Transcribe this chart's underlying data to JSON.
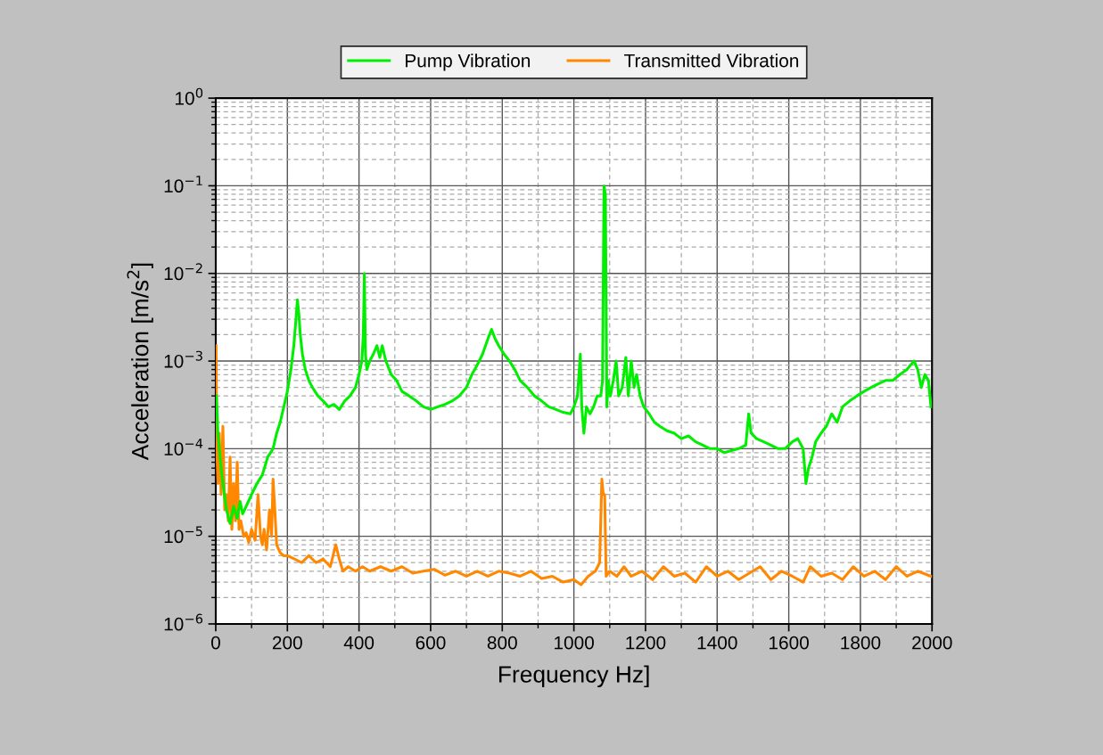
{
  "chart_data": {
    "type": "line",
    "xlabel": "Frequency Hz]",
    "ylabel": "Acceleration [m/s$^{2}$]",
    "log": "y",
    "grid": true,
    "legend": "top",
    "line_style": "solid",
    "marker": "none",
    "xlim": [
      0,
      2000
    ],
    "xticks": [
      0,
      200,
      400,
      600,
      800,
      1000,
      1200,
      1400,
      1600,
      1800,
      2000
    ],
    "ylim": [
      1e-06,
      1
    ],
    "yticks": [
      {
        "value": 1e-06,
        "label": "10$^{−6}$"
      },
      {
        "value": 1e-05,
        "label": "10$^{−5}$"
      },
      {
        "value": 0.0001,
        "label": "10$^{−4}$"
      },
      {
        "value": 0.001,
        "label": "10$^{−3}$"
      },
      {
        "value": 0.01,
        "label": "10$^{−2}$"
      },
      {
        "value": 0.1,
        "label": "10$^{−1}$"
      },
      {
        "value": 1,
        "label": "10$^{0}$"
      }
    ],
    "series": [
      {
        "name": "Pump Vibration",
        "color": "#00ee00",
        "x": [
          2,
          6,
          10,
          15,
          20,
          30,
          40,
          50,
          60,
          68,
          75,
          85,
          100,
          115,
          130,
          145,
          160,
          170,
          180,
          190,
          200,
          210,
          218,
          224,
          228,
          232,
          236,
          242,
          250,
          260,
          270,
          285,
          300,
          315,
          330,
          345,
          360,
          375,
          390,
          400,
          408,
          412,
          415,
          418,
          422,
          430,
          440,
          450,
          458,
          465,
          475,
          490,
          505,
          520,
          540,
          560,
          580,
          600,
          620,
          640,
          660,
          680,
          700,
          715,
          730,
          745,
          760,
          770,
          780,
          790,
          805,
          820,
          835,
          850,
          870,
          890,
          910,
          930,
          950,
          970,
          990,
          1000,
          1010,
          1018,
          1022,
          1028,
          1035,
          1045,
          1055,
          1065,
          1075,
          1080,
          1084,
          1088,
          1092,
          1096,
          1102,
          1110,
          1118,
          1125,
          1135,
          1145,
          1152,
          1160,
          1168,
          1175,
          1185,
          1195,
          1210,
          1225,
          1240,
          1260,
          1280,
          1300,
          1320,
          1340,
          1360,
          1380,
          1400,
          1420,
          1440,
          1460,
          1480,
          1488,
          1495,
          1510,
          1530,
          1550,
          1570,
          1590,
          1610,
          1625,
          1640,
          1648,
          1655,
          1665,
          1675,
          1690,
          1705,
          1720,
          1735,
          1750,
          1770,
          1790,
          1810,
          1830,
          1850,
          1870,
          1890,
          1910,
          1930,
          1940,
          1950,
          1960,
          1970,
          1980,
          1990,
          1997
        ],
        "values": [
          0.0004,
          0.00015,
          0.0001,
          6e-05,
          4e-05,
          2e-05,
          1.4e-05,
          2.2e-05,
          1.6e-05,
          2.5e-05,
          1.8e-05,
          2.2e-05,
          3e-05,
          4e-05,
          5e-05,
          8e-05,
          0.0001,
          0.00015,
          0.0002,
          0.0003,
          0.00045,
          0.0008,
          0.0015,
          0.003,
          0.005,
          0.0035,
          0.002,
          0.0012,
          0.0008,
          0.0006,
          0.0005,
          0.0004,
          0.00035,
          0.0003,
          0.00032,
          0.00028,
          0.00035,
          0.0004,
          0.0005,
          0.0007,
          0.001,
          0.002,
          0.01,
          0.0012,
          0.0008,
          0.001,
          0.0012,
          0.0015,
          0.0011,
          0.0015,
          0.001,
          0.0007,
          0.0006,
          0.00045,
          0.0004,
          0.00035,
          0.0003,
          0.00028,
          0.0003,
          0.00032,
          0.00035,
          0.0004,
          0.0005,
          0.0007,
          0.0009,
          0.0012,
          0.0018,
          0.0023,
          0.0018,
          0.0015,
          0.0012,
          0.001,
          0.0008,
          0.0006,
          0.0005,
          0.0004,
          0.00035,
          0.0003,
          0.00028,
          0.00026,
          0.00025,
          0.0003,
          0.0004,
          0.0012,
          0.0003,
          0.00015,
          0.0003,
          0.00025,
          0.0003,
          0.0004,
          0.0004,
          0.0006,
          0.1,
          0.08,
          0.0003,
          0.0006,
          0.0004,
          0.0006,
          0.001,
          0.0004,
          0.0005,
          0.0011,
          0.0004,
          0.001,
          0.0005,
          0.0007,
          0.0004,
          0.0003,
          0.00025,
          0.0002,
          0.00018,
          0.00016,
          0.00015,
          0.00013,
          0.00014,
          0.00012,
          0.00011,
          0.0001,
          0.0001,
          9e-05,
          9.5e-05,
          0.0001,
          0.00011,
          0.00025,
          0.00015,
          0.00013,
          0.00012,
          0.00011,
          0.0001,
          0.0001,
          0.00012,
          0.00013,
          0.0001,
          4e-05,
          6e-05,
          8e-05,
          0.00012,
          0.00015,
          0.00018,
          0.00025,
          0.0002,
          0.0003,
          0.00035,
          0.0004,
          0.00045,
          0.0005,
          0.00055,
          0.0006,
          0.0006,
          0.0007,
          0.0008,
          0.0009,
          0.001,
          0.0008,
          0.0005,
          0.0007,
          0.0006,
          0.0003
        ]
      },
      {
        "name": "Transmitted Vibration",
        "color": "#ff8800",
        "x": [
          1,
          3,
          6,
          10,
          15,
          20,
          25,
          30,
          35,
          40,
          45,
          50,
          55,
          60,
          65,
          70,
          78,
          85,
          92,
          100,
          110,
          118,
          125,
          130,
          135,
          142,
          150,
          156,
          160,
          165,
          170,
          180,
          190,
          200,
          220,
          240,
          260,
          280,
          300,
          320,
          335,
          345,
          355,
          370,
          390,
          410,
          430,
          460,
          490,
          520,
          550,
          580,
          610,
          640,
          670,
          700,
          730,
          760,
          790,
          820,
          850,
          880,
          910,
          940,
          970,
          1000,
          1020,
          1040,
          1060,
          1072,
          1078,
          1082,
          1086,
          1090,
          1100,
          1120,
          1140,
          1160,
          1190,
          1220,
          1250,
          1280,
          1310,
          1340,
          1370,
          1400,
          1430,
          1460,
          1490,
          1520,
          1550,
          1580,
          1610,
          1640,
          1660,
          1690,
          1720,
          1750,
          1780,
          1810,
          1840,
          1870,
          1900,
          1930,
          1960,
          1997
        ],
        "values": [
          0.0015,
          0.0001,
          4e-05,
          0.00015,
          3e-05,
          0.00018,
          2e-05,
          3e-05,
          1.5e-05,
          8e-05,
          1.2e-05,
          4e-05,
          1.5e-05,
          7e-05,
          1.2e-05,
          1.5e-05,
          1e-05,
          1.1e-05,
          8.5e-06,
          1.2e-05,
          9e-06,
          3e-05,
          1e-05,
          8e-06,
          1.2e-05,
          7e-06,
          2e-05,
          1e-05,
          4.5e-05,
          2e-05,
          8e-06,
          6.5e-06,
          6e-06,
          6e-06,
          5.5e-06,
          5e-06,
          6e-06,
          5e-06,
          5.5e-06,
          4.5e-06,
          8e-06,
          5.5e-06,
          4e-06,
          4.5e-06,
          4e-06,
          4.5e-06,
          4e-06,
          4.5e-06,
          4e-06,
          4.5e-06,
          3.8e-06,
          4e-06,
          4.2e-06,
          3.6e-06,
          4e-06,
          3.5e-06,
          4e-06,
          3.5e-06,
          4e-06,
          3.8e-06,
          3.5e-06,
          4e-06,
          3.3e-06,
          3.5e-06,
          3e-06,
          3.2e-06,
          2.8e-06,
          3.5e-06,
          4e-06,
          5e-06,
          4.5e-05,
          3e-05,
          3e-05,
          3.5e-06,
          4e-06,
          3.5e-06,
          4.5e-06,
          3.5e-06,
          4e-06,
          3.2e-06,
          4.5e-06,
          3.5e-06,
          3.8e-06,
          3e-06,
          4.5e-06,
          3.5e-06,
          4e-06,
          3.2e-06,
          3.8e-06,
          4.5e-06,
          3.2e-06,
          4e-06,
          3.5e-06,
          3e-06,
          4.5e-06,
          3.5e-06,
          3.8e-06,
          3.2e-06,
          4.5e-06,
          3.5e-06,
          4e-06,
          3.2e-06,
          4.5e-06,
          3.5e-06,
          4e-06,
          3.5e-06
        ]
      }
    ]
  }
}
